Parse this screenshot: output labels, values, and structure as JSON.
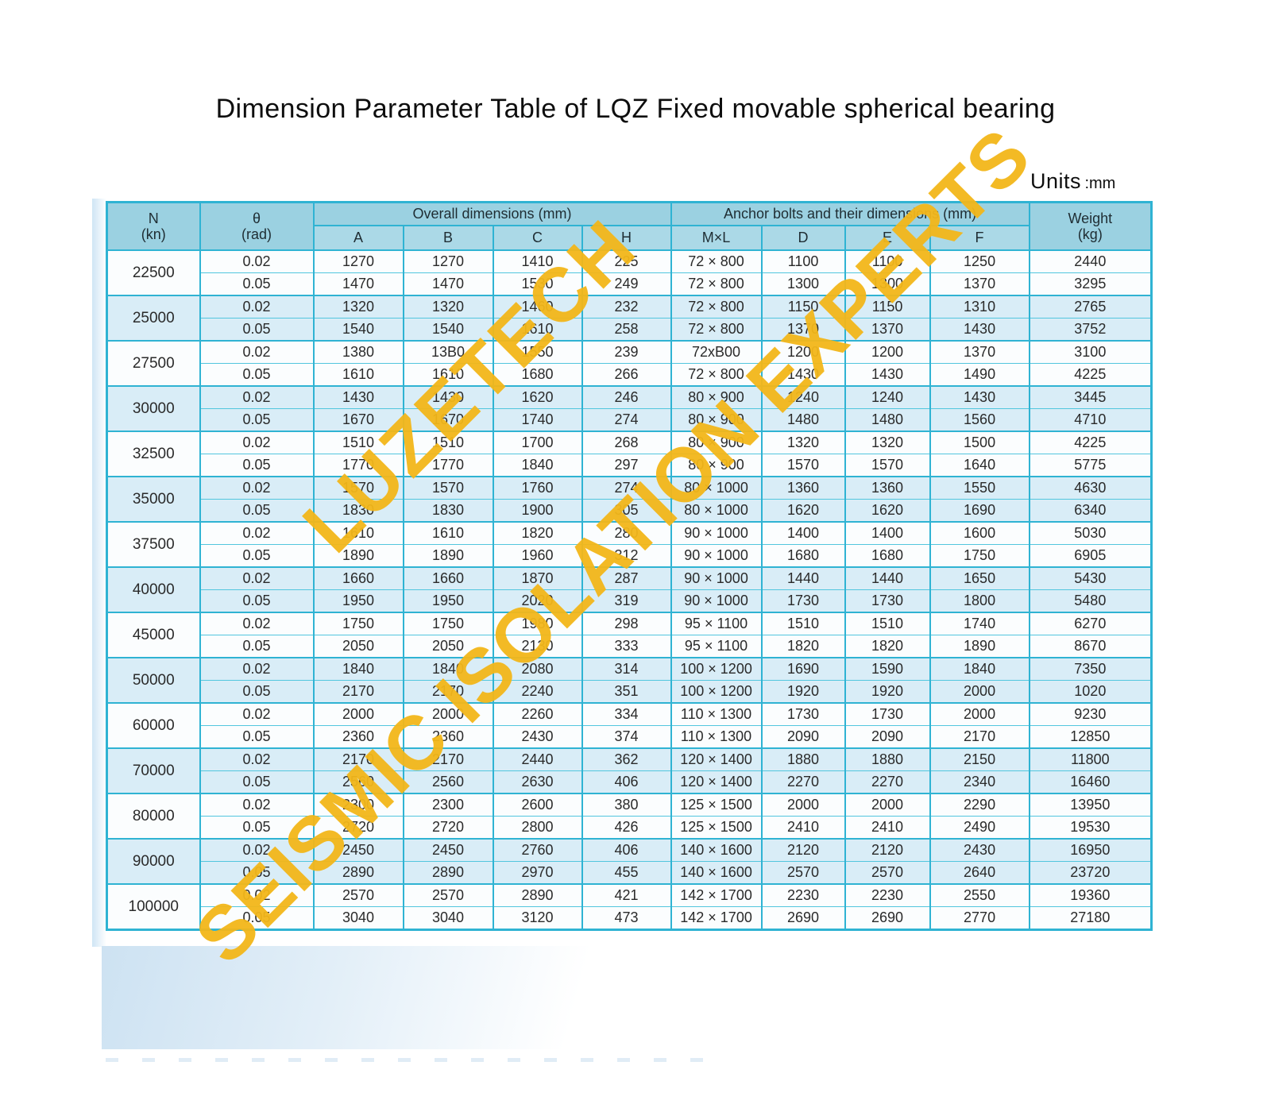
{
  "title": "Dimension Parameter Table of LQZ Fixed movable spherical bearing",
  "units": {
    "label": "Units",
    "value": ":mm"
  },
  "watermark": {
    "line1": "LUZETECH",
    "line2": "SEISMIC ISOLATION EXPERTS",
    "color": "#f3b71a"
  },
  "colors": {
    "border_cyan": "#2fb3d3",
    "divider_cyan": "#52c6de",
    "header_fill": "#9bd1e1",
    "subheader_fill": "#abd9e7",
    "group_tint_blue": "#d9edf7",
    "group_tint_white": "#fbfdfe",
    "watermark_gold": "#f3b71a"
  },
  "table": {
    "header": {
      "n_line1": "N",
      "n_line2": "(kn)",
      "theta_line1": "θ",
      "theta_line2": "(rad)",
      "overall": "Overall dimensions (mm)",
      "anchor": "Anchor bolts and their dimensions (mm)",
      "weight_line1": "Weight",
      "weight_line2": "(kg)",
      "sub_a": "A",
      "sub_b": "B",
      "sub_c": "C",
      "sub_h": "H",
      "sub_ml": "M×L",
      "sub_d": "D",
      "sub_e": "E",
      "sub_f": "F"
    },
    "columns": [
      "theta",
      "A",
      "B",
      "C",
      "H",
      "MxL",
      "D",
      "E",
      "F",
      "weight"
    ],
    "groups": [
      {
        "n": "22500",
        "rows": [
          [
            "0.02",
            "1270",
            "1270",
            "1410",
            "225",
            "72 × 800",
            "1100",
            "1100",
            "1250",
            "2440"
          ],
          [
            "0.05",
            "1470",
            "1470",
            "1530",
            "249",
            "72 × 800",
            "1300",
            "1300",
            "1370",
            "3295"
          ]
        ]
      },
      {
        "n": "25000",
        "rows": [
          [
            "0.02",
            "1320",
            "1320",
            "1460",
            "232",
            "72 × 800",
            "1150",
            "1150",
            "1310",
            "2765"
          ],
          [
            "0.05",
            "1540",
            "1540",
            "1610",
            "258",
            "72 × 800",
            "1370",
            "1370",
            "1430",
            "3752"
          ]
        ]
      },
      {
        "n": "27500",
        "rows": [
          [
            "0.02",
            "1380",
            "13B0",
            "1550",
            "239",
            "72xB00",
            "1200",
            "1200",
            "1370",
            "3100"
          ],
          [
            "0.05",
            "1610",
            "1610",
            "1680",
            "266",
            "72 × 800",
            "1430",
            "1430",
            "1490",
            "4225"
          ]
        ]
      },
      {
        "n": "30000",
        "rows": [
          [
            "0.02",
            "1430",
            "1430",
            "1620",
            "246",
            "80 × 900",
            "1240",
            "1240",
            "1430",
            "3445"
          ],
          [
            "0.05",
            "1670",
            "1670",
            "1740",
            "274",
            "80 × 900",
            "1480",
            "1480",
            "1560",
            "4710"
          ]
        ]
      },
      {
        "n": "32500",
        "rows": [
          [
            "0.02",
            "1510",
            "1510",
            "1700",
            "268",
            "80 × 900",
            "1320",
            "1320",
            "1500",
            "4225"
          ],
          [
            "0.05",
            "1770",
            "1770",
            "1840",
            "297",
            "80 × 900",
            "1570",
            "1570",
            "1640",
            "5775"
          ]
        ]
      },
      {
        "n": "35000",
        "rows": [
          [
            "0.02",
            "1570",
            "1570",
            "1760",
            "274",
            "80 × 1000",
            "1360",
            "1360",
            "1550",
            "4630"
          ],
          [
            "0.05",
            "1830",
            "1830",
            "1900",
            "305",
            "80 × 1000",
            "1620",
            "1620",
            "1690",
            "6340"
          ]
        ]
      },
      {
        "n": "37500",
        "rows": [
          [
            "0.02",
            "1610",
            "1610",
            "1820",
            "280",
            "90 × 1000",
            "1400",
            "1400",
            "1600",
            "5030"
          ],
          [
            "0.05",
            "1890",
            "1890",
            "1960",
            "312",
            "90 × 1000",
            "1680",
            "1680",
            "1750",
            "6905"
          ]
        ]
      },
      {
        "n": "40000",
        "rows": [
          [
            "0.02",
            "1660",
            "1660",
            "1870",
            "287",
            "90 × 1000",
            "1440",
            "1440",
            "1650",
            "5430"
          ],
          [
            "0.05",
            "1950",
            "1950",
            "2020",
            "319",
            "90 × 1000",
            "1730",
            "1730",
            "1800",
            "5480"
          ]
        ]
      },
      {
        "n": "45000",
        "rows": [
          [
            "0.02",
            "1750",
            "1750",
            "1980",
            "298",
            "95 × 1100",
            "1510",
            "1510",
            "1740",
            "6270"
          ],
          [
            "0.05",
            "2050",
            "2050",
            "2130",
            "333",
            "95 × 1100",
            "1820",
            "1820",
            "1890",
            "8670"
          ]
        ]
      },
      {
        "n": "50000",
        "rows": [
          [
            "0.02",
            "1840",
            "1840",
            "2080",
            "314",
            "100 × 1200",
            "1690",
            "1590",
            "1840",
            "7350"
          ],
          [
            "0.05",
            "2170",
            "2170",
            "2240",
            "351",
            "100 × 1200",
            "1920",
            "1920",
            "2000",
            "1020"
          ]
        ]
      },
      {
        "n": "60000",
        "rows": [
          [
            "0.02",
            "2000",
            "2000",
            "2260",
            "334",
            "110 × 1300",
            "1730",
            "1730",
            "2000",
            "9230"
          ],
          [
            "0.05",
            "2360",
            "2360",
            "2430",
            "374",
            "110 × 1300",
            "2090",
            "2090",
            "2170",
            "12850"
          ]
        ]
      },
      {
        "n": "70000",
        "rows": [
          [
            "0.02",
            "2170",
            "2170",
            "2440",
            "362",
            "120 × 1400",
            "1880",
            "1880",
            "2150",
            "11800"
          ],
          [
            "0.05",
            "2560",
            "2560",
            "2630",
            "406",
            "120 × 1400",
            "2270",
            "2270",
            "2340",
            "16460"
          ]
        ]
      },
      {
        "n": "80000",
        "rows": [
          [
            "0.02",
            "2300",
            "2300",
            "2600",
            "380",
            "125 × 1500",
            "2000",
            "2000",
            "2290",
            "13950"
          ],
          [
            "0.05",
            "2720",
            "2720",
            "2800",
            "426",
            "125 × 1500",
            "2410",
            "2410",
            "2490",
            "19530"
          ]
        ]
      },
      {
        "n": "90000",
        "rows": [
          [
            "0.02",
            "2450",
            "2450",
            "2760",
            "406",
            "140 × 1600",
            "2120",
            "2120",
            "2430",
            "16950"
          ],
          [
            "0.05",
            "2890",
            "2890",
            "2970",
            "455",
            "140 × 1600",
            "2570",
            "2570",
            "2640",
            "23720"
          ]
        ]
      },
      {
        "n": "100000",
        "rows": [
          [
            "0.02",
            "2570",
            "2570",
            "2890",
            "421",
            "142 × 1700",
            "2230",
            "2230",
            "2550",
            "19360"
          ],
          [
            "0.05",
            "3040",
            "3040",
            "3120",
            "473",
            "142 × 1700",
            "2690",
            "2690",
            "2770",
            "27180"
          ]
        ]
      }
    ]
  }
}
